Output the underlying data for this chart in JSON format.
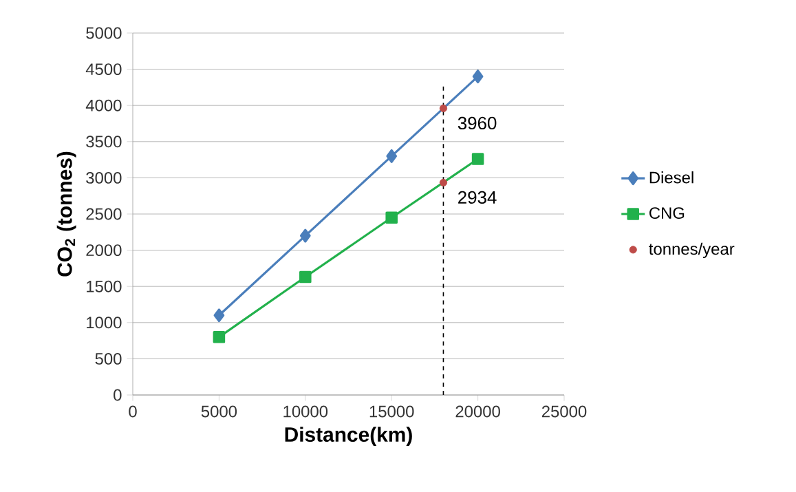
{
  "chart_data": {
    "type": "line",
    "xlabel": "Distance(km)",
    "ylabel": "CO$_{2}$ (tonnes)",
    "series": [
      {
        "name": "Diesel",
        "color": "#4a7ebb",
        "marker": "diamond",
        "x": [
          5000,
          10000,
          15000,
          20000
        ],
        "values": [
          1100,
          2200,
          3300,
          4400
        ]
      },
      {
        "name": "CNG",
        "color": "#22b14c",
        "marker": "square",
        "x": [
          5000,
          10000,
          15000,
          20000
        ],
        "values": [
          800,
          1630,
          2450,
          3260
        ]
      },
      {
        "name": "tonnes/year",
        "type": "scatter",
        "color": "#be4b48",
        "marker": "circle",
        "x": [
          18000,
          18000
        ],
        "values": [
          3960,
          2934
        ]
      }
    ],
    "xlim": [
      0,
      25000
    ],
    "xticks": [
      0,
      5000,
      10000,
      15000,
      20000,
      25000
    ],
    "ylim": [
      0,
      5000
    ],
    "yticks": [
      0,
      500,
      1000,
      1500,
      2000,
      2500,
      3000,
      3500,
      4000,
      4500,
      5000
    ],
    "grid": "y",
    "legend": "right",
    "ref_lines": [
      {
        "axis": "x",
        "value": 18000,
        "color": "#000000",
        "line_style": "dashed"
      }
    ],
    "annotations": [
      {
        "text": "3960",
        "x": 18000,
        "y": 3960
      },
      {
        "text": "2934",
        "x": 18000,
        "y": 2934
      }
    ]
  }
}
